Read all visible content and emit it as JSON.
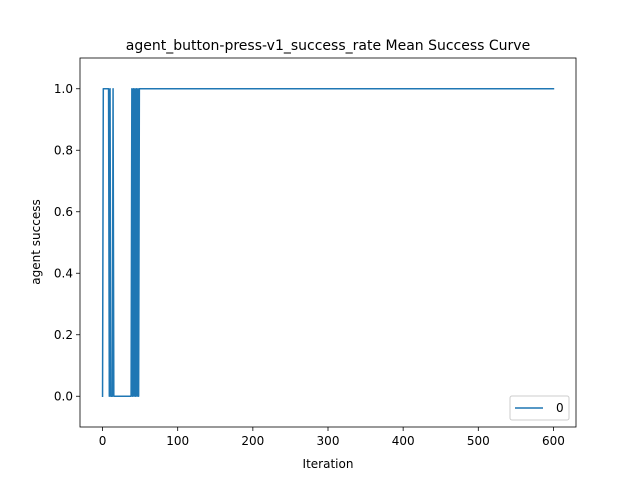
{
  "chart_data": {
    "type": "line",
    "title": "agent_button-press-v1_success_rate Mean Success Curve",
    "xlabel": "Iteration",
    "ylabel": "agent success",
    "xlim": [
      -30,
      630
    ],
    "ylim": [
      -0.1,
      1.1
    ],
    "xticks": [
      0,
      100,
      200,
      300,
      400,
      500,
      600
    ],
    "yticks": [
      0.0,
      0.2,
      0.4,
      0.6,
      0.8,
      1.0
    ],
    "xtick_labels": [
      "0",
      "100",
      "200",
      "300",
      "400",
      "500",
      "600"
    ],
    "ytick_labels": [
      "0.0",
      "0.2",
      "0.4",
      "0.6",
      "0.8",
      "1.0"
    ],
    "grid": false,
    "legend_position": "lower-right",
    "series": [
      {
        "name": "0",
        "color": "#1f77b4",
        "x": [
          0,
          1,
          2,
          3,
          4,
          5,
          6,
          7,
          8,
          9,
          10,
          11,
          12,
          13,
          14,
          15,
          20,
          25,
          30,
          35,
          38,
          39,
          40,
          41,
          42,
          43,
          44,
          45,
          46,
          47,
          48,
          49,
          50,
          100,
          200,
          300,
          400,
          500,
          600
        ],
        "y": [
          0,
          1,
          1,
          1,
          1,
          1,
          1,
          1,
          1,
          0,
          1,
          0,
          0,
          0,
          1,
          0,
          0,
          0,
          0,
          0,
          0,
          1,
          0,
          1,
          0,
          1,
          0,
          1,
          0,
          1,
          0,
          1,
          1,
          1,
          1,
          1,
          1,
          1,
          1
        ]
      }
    ]
  },
  "legend": {
    "entries": [
      "0"
    ]
  }
}
